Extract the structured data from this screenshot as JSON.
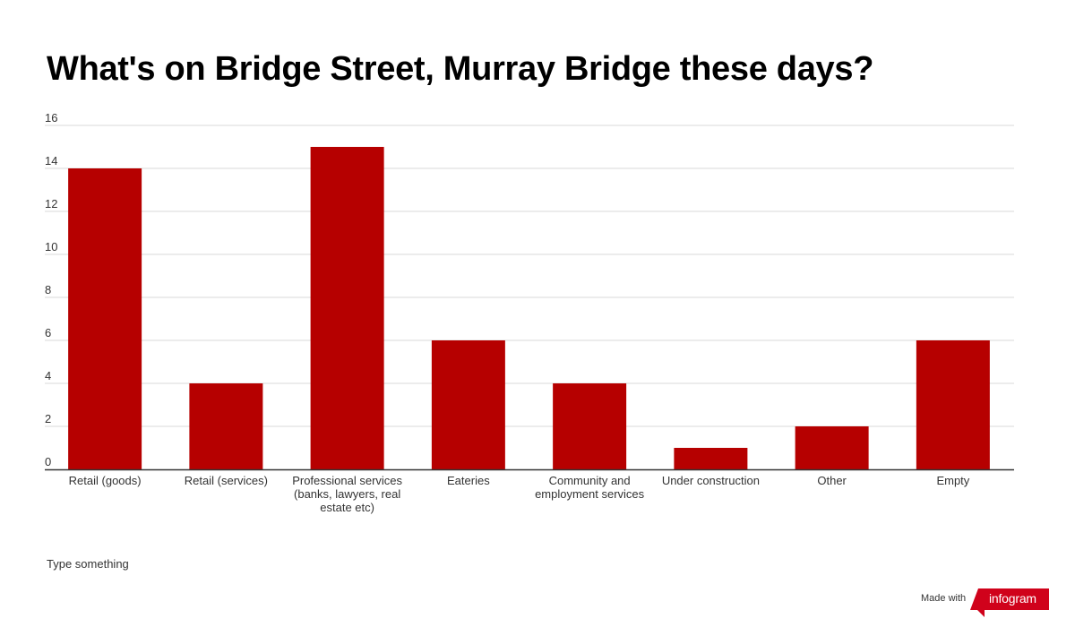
{
  "chart_data": {
    "type": "bar",
    "title": "What's on Bridge Street, Murray Bridge these days?",
    "categories": [
      "Retail (goods)",
      "Retail (services)",
      "Professional services (banks, lawyers, real estate etc)",
      "Eateries",
      "Community and employment services",
      "Under construction",
      "Other",
      "Empty"
    ],
    "category_lines": [
      [
        "Retail (goods)"
      ],
      [
        "Retail (services)"
      ],
      [
        "Professional services",
        "(banks, lawyers, real",
        "estate etc)"
      ],
      [
        "Eateries"
      ],
      [
        "Community and",
        "employment services"
      ],
      [
        "Under construction"
      ],
      [
        "Other"
      ],
      [
        "Empty"
      ]
    ],
    "values": [
      14,
      4,
      15,
      6,
      4,
      1,
      2,
      6
    ],
    "ylim": [
      0,
      16
    ],
    "yticks": [
      "0",
      "2",
      "4",
      "6",
      "8",
      "10",
      "12",
      "14",
      "16"
    ],
    "grid": true,
    "xlabel": "",
    "ylabel": "",
    "bar_color": "#b60000"
  },
  "footnote": "Type something",
  "brand": {
    "made_with": "Made with",
    "logo_text": "infogram",
    "logo_color": "#d0021b"
  }
}
